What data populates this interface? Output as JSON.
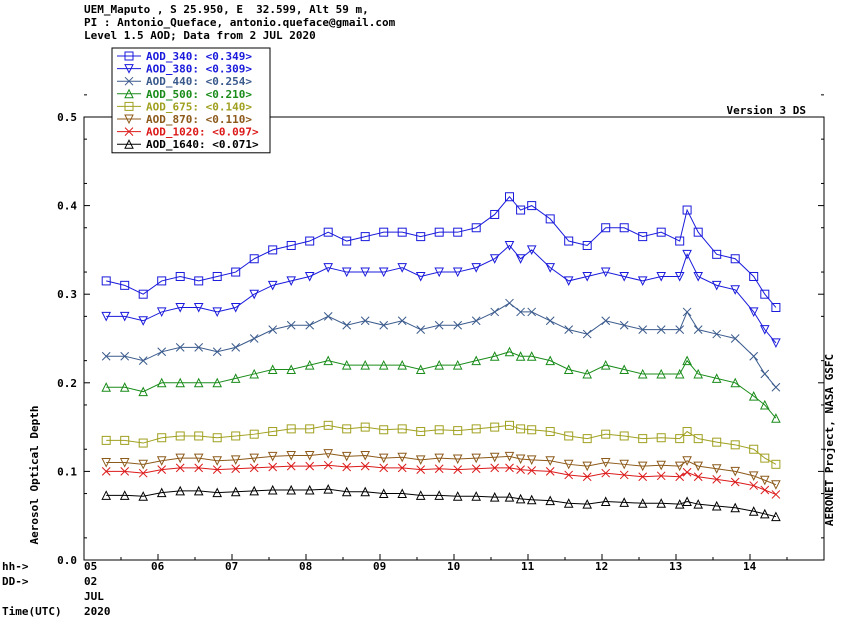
{
  "header": {
    "line1": "UEM_Maputo , S 25.950, E  32.599, Alt 59 m,",
    "line2": "PI : Antonio_Queface, antonio.queface@gmail.com",
    "line3": "Level 1.5 AOD; Data from 2 JUL 2020"
  },
  "version": "Version 3 DS",
  "credit": "AERONET Project, NASA GSFC",
  "time_axis": {
    "hh_label": "hh->",
    "dd_label": "DD->",
    "time_label": "Time(UTC)",
    "day": "02",
    "month": "JUL",
    "year": "2020"
  },
  "chart_data": {
    "type": "scatter",
    "title": "",
    "xlabel": "",
    "ylabel": "Aerosol Optical Depth",
    "xlim": [
      5,
      15
    ],
    "ylim": [
      0.0,
      0.5
    ],
    "xticks": [
      "05",
      "06",
      "07",
      "08",
      "09",
      "10",
      "11",
      "12",
      "13",
      "14"
    ],
    "yticks": [
      "0.0",
      "0.1",
      "0.2",
      "0.3",
      "0.4",
      "0.5"
    ],
    "grid": false,
    "legend": "top-left",
    "x": [
      5.3,
      5.55,
      5.8,
      6.05,
      6.3,
      6.55,
      6.8,
      7.05,
      7.3,
      7.55,
      7.8,
      8.05,
      8.3,
      8.55,
      8.8,
      9.05,
      9.3,
      9.55,
      9.8,
      10.05,
      10.3,
      10.55,
      10.75,
      10.9,
      11.05,
      11.3,
      11.55,
      11.8,
      12.05,
      12.3,
      12.55,
      12.8,
      13.05,
      13.15,
      13.3,
      13.55,
      13.8,
      14.05,
      14.2,
      14.35
    ],
    "series": [
      {
        "name": "AOD_340",
        "label": "AOD_340: <0.349>",
        "color": "#1a1adc",
        "marker": "square",
        "values": [
          0.315,
          0.31,
          0.3,
          0.315,
          0.32,
          0.315,
          0.32,
          0.325,
          0.34,
          0.35,
          0.355,
          0.36,
          0.37,
          0.36,
          0.365,
          0.37,
          0.37,
          0.365,
          0.37,
          0.37,
          0.375,
          0.39,
          0.41,
          0.395,
          0.4,
          0.385,
          0.36,
          0.355,
          0.375,
          0.375,
          0.365,
          0.37,
          0.36,
          0.395,
          0.37,
          0.345,
          0.34,
          0.32,
          0.3,
          0.285
        ]
      },
      {
        "name": "AOD_380",
        "label": "AOD_380: <0.309>",
        "color": "#1a1adc",
        "marker": "tri-down",
        "values": [
          0.275,
          0.275,
          0.27,
          0.28,
          0.285,
          0.285,
          0.28,
          0.285,
          0.3,
          0.31,
          0.315,
          0.32,
          0.33,
          0.325,
          0.325,
          0.325,
          0.33,
          0.32,
          0.325,
          0.325,
          0.33,
          0.34,
          0.355,
          0.34,
          0.35,
          0.33,
          0.315,
          0.32,
          0.325,
          0.32,
          0.315,
          0.32,
          0.32,
          0.345,
          0.32,
          0.31,
          0.305,
          0.28,
          0.26,
          0.245
        ]
      },
      {
        "name": "AOD_440",
        "label": "AOD_440: <0.254>",
        "color": "#3a5a8c",
        "marker": "x",
        "values": [
          0.23,
          0.23,
          0.225,
          0.235,
          0.24,
          0.24,
          0.235,
          0.24,
          0.25,
          0.26,
          0.265,
          0.265,
          0.275,
          0.265,
          0.27,
          0.265,
          0.27,
          0.26,
          0.265,
          0.265,
          0.27,
          0.28,
          0.29,
          0.28,
          0.28,
          0.27,
          0.26,
          0.255,
          0.27,
          0.265,
          0.26,
          0.26,
          0.26,
          0.28,
          0.26,
          0.255,
          0.25,
          0.23,
          0.21,
          0.195
        ]
      },
      {
        "name": "AOD_500",
        "label": "AOD_500: <0.210>",
        "color": "#1a8c1a",
        "marker": "tri-up",
        "values": [
          0.195,
          0.195,
          0.19,
          0.2,
          0.2,
          0.2,
          0.2,
          0.205,
          0.21,
          0.215,
          0.215,
          0.22,
          0.225,
          0.22,
          0.22,
          0.22,
          0.22,
          0.215,
          0.22,
          0.22,
          0.225,
          0.23,
          0.235,
          0.23,
          0.23,
          0.225,
          0.215,
          0.21,
          0.22,
          0.215,
          0.21,
          0.21,
          0.21,
          0.225,
          0.21,
          0.205,
          0.2,
          0.185,
          0.175,
          0.16
        ]
      },
      {
        "name": "AOD_675",
        "label": "AOD_675: <0.140>",
        "color": "#a0a020",
        "marker": "square",
        "values": [
          0.135,
          0.135,
          0.132,
          0.138,
          0.14,
          0.14,
          0.138,
          0.14,
          0.142,
          0.145,
          0.148,
          0.148,
          0.152,
          0.148,
          0.15,
          0.147,
          0.148,
          0.145,
          0.147,
          0.146,
          0.148,
          0.15,
          0.152,
          0.148,
          0.147,
          0.145,
          0.14,
          0.137,
          0.142,
          0.14,
          0.137,
          0.138,
          0.137,
          0.145,
          0.137,
          0.133,
          0.13,
          0.125,
          0.115,
          0.108
        ]
      },
      {
        "name": "AOD_870",
        "label": "AOD_870: <0.110>",
        "color": "#8c5a1a",
        "marker": "tri-down",
        "values": [
          0.11,
          0.11,
          0.108,
          0.112,
          0.115,
          0.115,
          0.112,
          0.113,
          0.115,
          0.117,
          0.118,
          0.118,
          0.12,
          0.117,
          0.118,
          0.115,
          0.116,
          0.113,
          0.115,
          0.114,
          0.115,
          0.116,
          0.117,
          0.114,
          0.113,
          0.112,
          0.108,
          0.106,
          0.11,
          0.108,
          0.106,
          0.107,
          0.106,
          0.112,
          0.106,
          0.103,
          0.1,
          0.095,
          0.09,
          0.085
        ]
      },
      {
        "name": "AOD_1020",
        "label": "AOD_1020: <0.097>",
        "color": "#dc1a1a",
        "marker": "x",
        "values": [
          0.1,
          0.1,
          0.098,
          0.102,
          0.104,
          0.104,
          0.102,
          0.103,
          0.104,
          0.105,
          0.106,
          0.106,
          0.107,
          0.105,
          0.106,
          0.104,
          0.104,
          0.102,
          0.103,
          0.102,
          0.103,
          0.104,
          0.104,
          0.102,
          0.101,
          0.1,
          0.096,
          0.094,
          0.098,
          0.096,
          0.094,
          0.095,
          0.094,
          0.099,
          0.094,
          0.091,
          0.088,
          0.084,
          0.079,
          0.074
        ]
      },
      {
        "name": "AOD_1640",
        "label": "AOD_1640: <0.071>",
        "color": "#000000",
        "marker": "tri-up",
        "values": [
          0.073,
          0.073,
          0.072,
          0.076,
          0.078,
          0.078,
          0.076,
          0.077,
          0.078,
          0.079,
          0.079,
          0.079,
          0.08,
          0.077,
          0.077,
          0.075,
          0.075,
          0.073,
          0.073,
          0.072,
          0.072,
          0.071,
          0.071,
          0.069,
          0.068,
          0.067,
          0.064,
          0.063,
          0.066,
          0.065,
          0.064,
          0.064,
          0.063,
          0.066,
          0.063,
          0.061,
          0.059,
          0.055,
          0.052,
          0.049
        ]
      }
    ]
  }
}
